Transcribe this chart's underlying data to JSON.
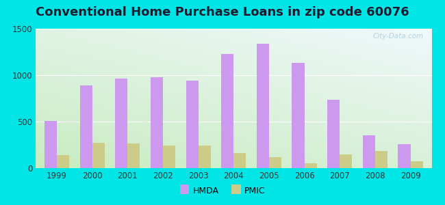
{
  "title": "Conventional Home Purchase Loans in zip code 60076",
  "years": [
    1999,
    2000,
    2001,
    2002,
    2003,
    2004,
    2005,
    2006,
    2007,
    2008,
    2009
  ],
  "hmda": [
    510,
    890,
    960,
    975,
    940,
    1230,
    1340,
    1130,
    735,
    355,
    255
  ],
  "pmic": [
    140,
    270,
    265,
    245,
    240,
    160,
    115,
    55,
    145,
    185,
    75
  ],
  "hmda_color": "#cc99ee",
  "pmic_color": "#cccc88",
  "ylim": [
    0,
    1500
  ],
  "yticks": [
    0,
    500,
    1000,
    1500
  ],
  "background_outer": "#00e5e5",
  "bg_bottom_left": "#c8ecc0",
  "bg_top_right": "#f0f8fc",
  "grid_color": "#ffffff",
  "title_fontsize": 13,
  "watermark": "City-Data.com"
}
